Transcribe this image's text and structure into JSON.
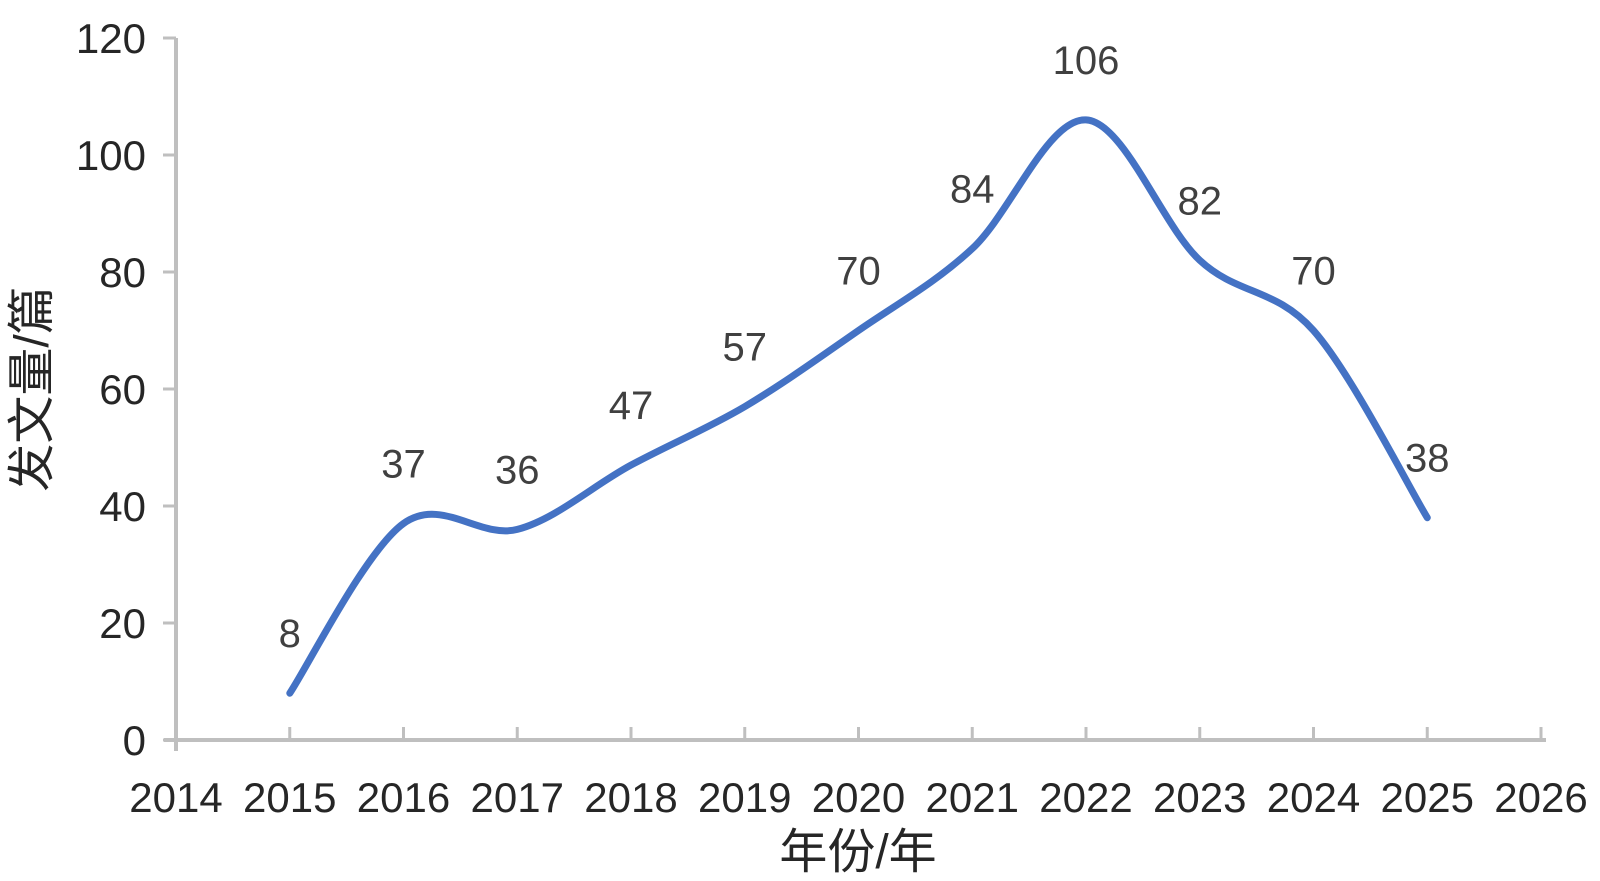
{
  "chart_data": {
    "type": "line",
    "title": "",
    "xlabel": "年份/年",
    "ylabel": "发文量/篇",
    "x": [
      2015,
      2016,
      2017,
      2018,
      2019,
      2020,
      2021,
      2022,
      2023,
      2024,
      2025
    ],
    "values": [
      8,
      37,
      36,
      47,
      57,
      70,
      84,
      106,
      82,
      70,
      38
    ],
    "data_labels": [
      "8",
      "37",
      "36",
      "47",
      "57",
      "70",
      "84",
      "106",
      "82",
      "70",
      "38"
    ],
    "x_ticks": [
      2014,
      2015,
      2016,
      2017,
      2018,
      2019,
      2020,
      2021,
      2022,
      2023,
      2024,
      2025,
      2026
    ],
    "y_ticks": [
      0,
      20,
      40,
      60,
      80,
      100,
      120
    ],
    "xlim": [
      2014,
      2026
    ],
    "ylim": [
      0,
      120
    ],
    "grid": false,
    "legend": "none",
    "smooth_line": true,
    "line_width": 7,
    "colors": {
      "line": "#4472C4",
      "axis": "#BFBFBF",
      "tick_label": "#262626",
      "data_label": "#404040",
      "axis_title": "#262626",
      "background": "#ffffff"
    }
  }
}
